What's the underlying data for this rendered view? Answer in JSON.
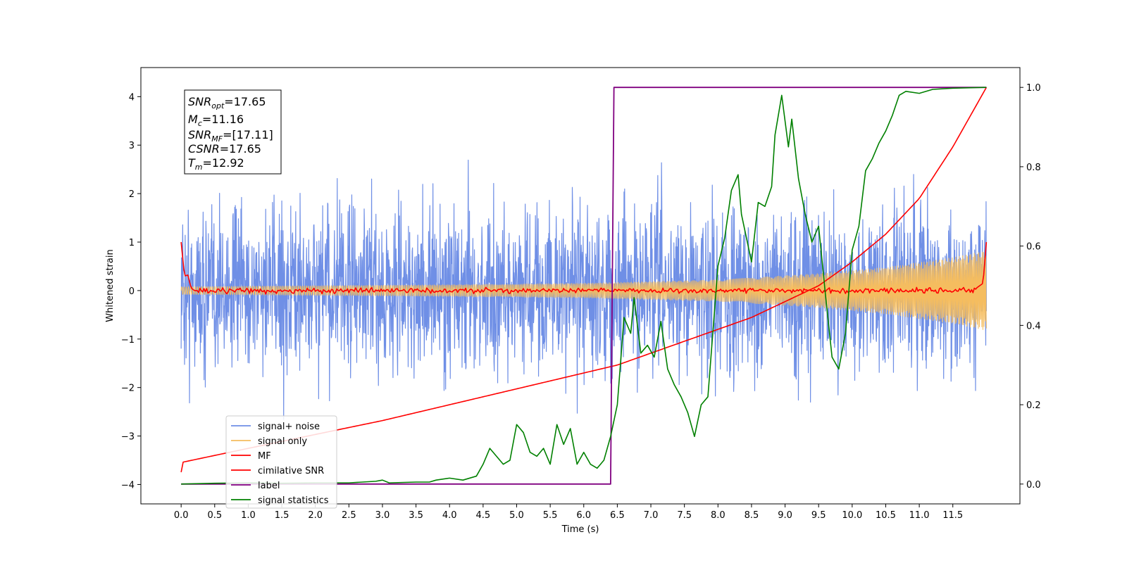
{
  "chart_data": {
    "type": "line",
    "xlabel": "Time (s)",
    "ylabel": "Whitened strain",
    "xlim": [
      -0.6,
      12.5
    ],
    "ylim": [
      -4.4,
      4.6
    ],
    "y2lim": [
      -0.05,
      1.05
    ],
    "x_ticks": [
      "0.0",
      "0.5",
      "1.0",
      "1.5",
      "2.0",
      "2.5",
      "3.0",
      "3.5",
      "4.0",
      "4.5",
      "5.0",
      "5.5",
      "6.0",
      "6.5",
      "7.0",
      "7.5",
      "8.0",
      "8.5",
      "9.0",
      "9.5",
      "10.0",
      "10.5",
      "11.0",
      "11.5"
    ],
    "y_ticks": [
      "4",
      "3",
      "2",
      "1",
      "0",
      "−1",
      "−2",
      "−3",
      "−4"
    ],
    "y2_ticks": [
      "1.0",
      "0.8",
      "0.6",
      "0.4",
      "0.2",
      "0.0"
    ],
    "legend_position": "lower-left",
    "legend": [
      "signal+ noise",
      "signal only",
      "MF",
      "cimilative SNR",
      "label",
      "signal statistics"
    ],
    "annotation": {
      "snr_opt_main": "SNR",
      "snr_opt_sub": "opt",
      "snr_opt_value": "=17.65",
      "mc_main": "M",
      "mc_sub": "c",
      "mc_value": "=11.16",
      "snr_mf_main": "SNR",
      "snr_mf_sub": "MF",
      "snr_mf_value": "=[17.11]",
      "csnr_main": "CSNR",
      "csnr_value": "=17.65",
      "tm_main": "T",
      "tm_sub": "m",
      "tm_value": "=12.92"
    },
    "series": [
      {
        "name": "signal+ noise",
        "color": "#6f8fe6",
        "axis": "left",
        "noise_amplitude_approx": 1.3,
        "x_range": [
          0.0,
          12.0
        ]
      },
      {
        "name": "signal only",
        "color": "#f5bd5f",
        "axis": "left",
        "envelope": [
          [
            0.0,
            0.08
          ],
          [
            2.0,
            0.1
          ],
          [
            4.0,
            0.12
          ],
          [
            6.0,
            0.15
          ],
          [
            8.0,
            0.22
          ],
          [
            9.5,
            0.35
          ],
          [
            10.5,
            0.48
          ],
          [
            11.5,
            0.68
          ],
          [
            12.0,
            0.82
          ]
        ]
      },
      {
        "name": "MF",
        "color": "#ff0000",
        "axis": "left",
        "points": [
          [
            0.0,
            1.0
          ],
          [
            0.05,
            0.3
          ],
          [
            0.1,
            0.32
          ],
          [
            0.15,
            0.05
          ],
          [
            0.2,
            0.0
          ],
          [
            1.0,
            0.0
          ],
          [
            6.0,
            0.0
          ],
          [
            9.0,
            0.0
          ],
          [
            11.8,
            0.0
          ],
          [
            11.95,
            0.15
          ],
          [
            12.0,
            1.0
          ]
        ]
      },
      {
        "name": "cimilative SNR",
        "color": "#ff0000",
        "axis": "right",
        "points": [
          [
            0.0,
            0.03
          ],
          [
            0.02,
            0.055
          ],
          [
            1.0,
            0.09
          ],
          [
            2.0,
            0.125
          ],
          [
            3.0,
            0.16
          ],
          [
            4.0,
            0.2
          ],
          [
            5.0,
            0.24
          ],
          [
            6.0,
            0.28
          ],
          [
            6.5,
            0.3
          ],
          [
            7.0,
            0.33
          ],
          [
            7.5,
            0.36
          ],
          [
            8.0,
            0.39
          ],
          [
            8.5,
            0.42
          ],
          [
            9.0,
            0.46
          ],
          [
            9.5,
            0.5
          ],
          [
            10.0,
            0.56
          ],
          [
            10.5,
            0.63
          ],
          [
            11.0,
            0.72
          ],
          [
            11.5,
            0.85
          ],
          [
            12.0,
            1.0
          ]
        ]
      },
      {
        "name": "label",
        "color": "#800080",
        "axis": "right",
        "points": [
          [
            0.0,
            0.0
          ],
          [
            6.4,
            0.0
          ],
          [
            6.45,
            1.0
          ],
          [
            12.0,
            1.0
          ]
        ]
      },
      {
        "name": "signal statistics",
        "color": "#008000",
        "axis": "right",
        "points": [
          [
            0.0,
            0.0
          ],
          [
            0.5,
            0.002
          ],
          [
            1.0,
            0.003
          ],
          [
            1.5,
            0.002
          ],
          [
            2.0,
            0.003
          ],
          [
            2.5,
            0.003
          ],
          [
            2.9,
            0.007
          ],
          [
            3.0,
            0.01
          ],
          [
            3.1,
            0.003
          ],
          [
            3.5,
            0.005
          ],
          [
            3.7,
            0.005
          ],
          [
            3.8,
            0.01
          ],
          [
            4.0,
            0.015
          ],
          [
            4.2,
            0.01
          ],
          [
            4.4,
            0.02
          ],
          [
            4.5,
            0.05
          ],
          [
            4.6,
            0.09
          ],
          [
            4.7,
            0.07
          ],
          [
            4.8,
            0.05
          ],
          [
            4.9,
            0.06
          ],
          [
            5.0,
            0.15
          ],
          [
            5.1,
            0.13
          ],
          [
            5.2,
            0.08
          ],
          [
            5.3,
            0.07
          ],
          [
            5.4,
            0.09
          ],
          [
            5.5,
            0.05
          ],
          [
            5.6,
            0.15
          ],
          [
            5.7,
            0.1
          ],
          [
            5.8,
            0.14
          ],
          [
            5.9,
            0.05
          ],
          [
            6.0,
            0.08
          ],
          [
            6.1,
            0.05
          ],
          [
            6.2,
            0.04
          ],
          [
            6.3,
            0.06
          ],
          [
            6.4,
            0.12
          ],
          [
            6.5,
            0.2
          ],
          [
            6.6,
            0.42
          ],
          [
            6.7,
            0.38
          ],
          [
            6.75,
            0.47
          ],
          [
            6.85,
            0.33
          ],
          [
            6.95,
            0.35
          ],
          [
            7.05,
            0.32
          ],
          [
            7.15,
            0.41
          ],
          [
            7.25,
            0.29
          ],
          [
            7.35,
            0.25
          ],
          [
            7.45,
            0.22
          ],
          [
            7.55,
            0.18
          ],
          [
            7.65,
            0.12
          ],
          [
            7.75,
            0.2
          ],
          [
            7.85,
            0.22
          ],
          [
            8.0,
            0.55
          ],
          [
            8.1,
            0.62
          ],
          [
            8.2,
            0.74
          ],
          [
            8.3,
            0.78
          ],
          [
            8.35,
            0.68
          ],
          [
            8.45,
            0.6
          ],
          [
            8.5,
            0.56
          ],
          [
            8.6,
            0.71
          ],
          [
            8.7,
            0.7
          ],
          [
            8.8,
            0.75
          ],
          [
            8.85,
            0.88
          ],
          [
            8.95,
            0.98
          ],
          [
            9.05,
            0.85
          ],
          [
            9.1,
            0.92
          ],
          [
            9.2,
            0.77
          ],
          [
            9.3,
            0.68
          ],
          [
            9.4,
            0.61
          ],
          [
            9.5,
            0.65
          ],
          [
            9.6,
            0.48
          ],
          [
            9.7,
            0.32
          ],
          [
            9.8,
            0.29
          ],
          [
            9.9,
            0.38
          ],
          [
            10.0,
            0.59
          ],
          [
            10.1,
            0.65
          ],
          [
            10.2,
            0.79
          ],
          [
            10.3,
            0.82
          ],
          [
            10.4,
            0.86
          ],
          [
            10.5,
            0.89
          ],
          [
            10.6,
            0.93
          ],
          [
            10.7,
            0.98
          ],
          [
            10.8,
            0.99
          ],
          [
            11.0,
            0.985
          ],
          [
            11.2,
            0.995
          ],
          [
            11.5,
            0.998
          ],
          [
            12.0,
            1.0
          ]
        ]
      }
    ]
  }
}
